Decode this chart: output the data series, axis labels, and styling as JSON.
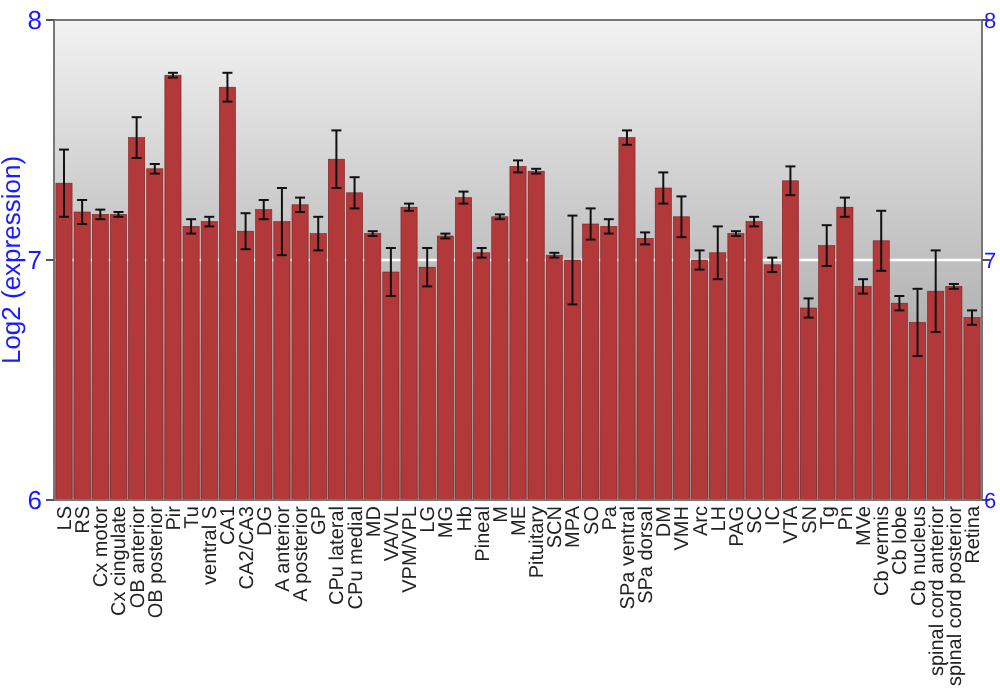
{
  "chart_data": {
    "type": "bar",
    "ylabel": "Log2 (expression)",
    "categories": [
      "LS",
      "RS",
      "Cx motor",
      "Cx cingulate",
      "OB anterior",
      "OB posterior",
      "Pir",
      "Tu",
      "ventral S",
      "CA1",
      "CA2/CA3",
      "DG",
      "A anterior",
      "A posterior",
      "GP",
      "CPu lateral",
      "CPu medial",
      "MD",
      "VA/VL",
      "VPM/VPL",
      "LG",
      "MG",
      "Hb",
      "Pineal",
      "M",
      "ME",
      "Pituitary",
      "SCN",
      "MPA",
      "SO",
      "Pa",
      "SPa ventral",
      "SPa dorsal",
      "DM",
      "VMH",
      "Arc",
      "LH",
      "PAG",
      "SC",
      "IC",
      "VTA",
      "SN",
      "Tg",
      "Pn",
      "MVe",
      "Cb vermis",
      "Cb lobe",
      "Cb nucleus",
      "spinal cord anterior",
      "spinal cord posterior",
      "Retina"
    ],
    "series": [
      {
        "color": "#b3383a",
        "values": [
          7.32,
          7.2,
          7.19,
          7.19,
          7.51,
          7.38,
          7.77,
          7.14,
          7.16,
          7.72,
          7.12,
          7.21,
          7.16,
          7.23,
          7.11,
          7.42,
          7.28,
          7.11,
          6.95,
          7.22,
          6.97,
          7.1,
          7.26,
          7.03,
          7.18,
          7.39,
          7.37,
          7.02,
          7.0,
          7.15,
          7.14,
          7.51,
          7.09,
          7.3,
          7.18,
          7.0,
          7.03,
          7.11,
          7.16,
          6.98,
          7.33,
          6.8,
          7.06,
          7.22,
          6.89,
          7.08,
          6.82,
          6.74,
          6.87,
          6.89,
          6.76
        ],
        "errors": [
          0.14,
          0.05,
          0.02,
          0.01,
          0.085,
          0.02,
          0.01,
          0.03,
          0.02,
          0.06,
          0.075,
          0.04,
          0.14,
          0.03,
          0.07,
          0.12,
          0.065,
          0.01,
          0.1,
          0.015,
          0.08,
          0.01,
          0.025,
          0.02,
          0.01,
          0.025,
          0.01,
          0.01,
          0.185,
          0.065,
          0.03,
          0.03,
          0.025,
          0.065,
          0.085,
          0.04,
          0.11,
          0.01,
          0.02,
          0.03,
          0.06,
          0.04,
          0.085,
          0.04,
          0.03,
          0.125,
          0.03,
          0.14,
          0.17,
          0.01,
          0.03
        ]
      }
    ],
    "ylim": [
      6,
      8
    ],
    "yticks": [
      6,
      7,
      8
    ],
    "y2lim": [
      6,
      8
    ],
    "y2ticks": [
      6,
      7,
      8
    ],
    "grid": "y"
  }
}
